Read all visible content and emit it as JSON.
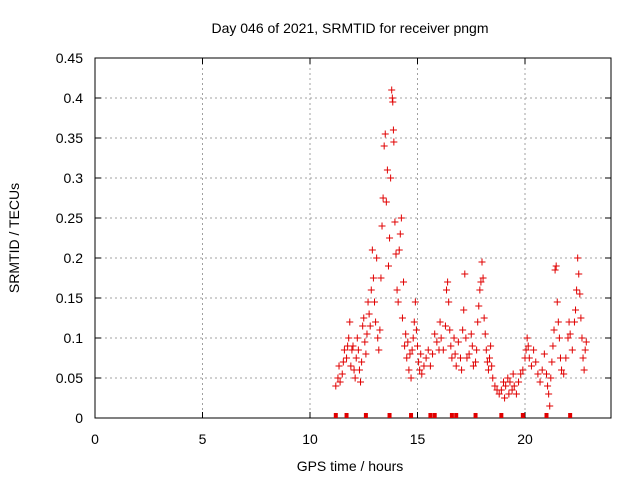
{
  "chart_data": {
    "type": "scatter",
    "title": "Day 046 of 2021, SRMTID for receiver pngm",
    "xlabel": "GPS time / hours",
    "ylabel": "SRMTID / TECUs",
    "xlim": [
      0,
      24
    ],
    "ylim": [
      0,
      0.45
    ],
    "xticks": [
      0,
      5,
      10,
      15,
      20
    ],
    "yticks": [
      0,
      0.05,
      0.1,
      0.15,
      0.2,
      0.25,
      0.3,
      0.35,
      0.4,
      0.45
    ],
    "grid": true,
    "marker": "+",
    "color": "#e00000",
    "series": [
      {
        "name": "SRMTID",
        "points": [
          [
            11.2,
            0.04
          ],
          [
            11.3,
            0.05
          ],
          [
            11.35,
            0.065
          ],
          [
            11.4,
            0.045
          ],
          [
            11.5,
            0.055
          ],
          [
            11.55,
            0.07
          ],
          [
            11.6,
            0.085
          ],
          [
            11.7,
            0.075
          ],
          [
            11.75,
            0.09
          ],
          [
            11.8,
            0.1
          ],
          [
            11.85,
            0.12
          ],
          [
            11.9,
            0.065
          ],
          [
            11.95,
            0.085
          ],
          [
            12.0,
            0.09
          ],
          [
            12.05,
            0.06
          ],
          [
            12.1,
            0.05
          ],
          [
            12.15,
            0.075
          ],
          [
            12.2,
            0.1
          ],
          [
            12.25,
            0.085
          ],
          [
            12.3,
            0.06
          ],
          [
            12.35,
            0.045
          ],
          [
            12.4,
            0.07
          ],
          [
            12.45,
            0.115
          ],
          [
            12.5,
            0.125
          ],
          [
            12.55,
            0.095
          ],
          [
            12.6,
            0.08
          ],
          [
            12.65,
            0.105
          ],
          [
            12.7,
            0.145
          ],
          [
            12.75,
            0.13
          ],
          [
            12.8,
            0.115
          ],
          [
            12.85,
            0.16
          ],
          [
            12.9,
            0.21
          ],
          [
            12.95,
            0.175
          ],
          [
            13.0,
            0.145
          ],
          [
            13.05,
            0.12
          ],
          [
            13.1,
            0.2
          ],
          [
            13.15,
            0.1
          ],
          [
            13.2,
            0.085
          ],
          [
            13.25,
            0.11
          ],
          [
            13.3,
            0.175
          ],
          [
            13.35,
            0.24
          ],
          [
            13.4,
            0.275
          ],
          [
            13.45,
            0.34
          ],
          [
            13.5,
            0.355
          ],
          [
            13.55,
            0.27
          ],
          [
            13.6,
            0.31
          ],
          [
            13.65,
            0.19
          ],
          [
            13.7,
            0.225
          ],
          [
            13.75,
            0.3
          ],
          [
            13.8,
            0.41
          ],
          [
            13.83,
            0.4
          ],
          [
            13.85,
            0.395
          ],
          [
            13.88,
            0.36
          ],
          [
            13.9,
            0.345
          ],
          [
            13.95,
            0.245
          ],
          [
            14.0,
            0.205
          ],
          [
            14.05,
            0.16
          ],
          [
            14.1,
            0.145
          ],
          [
            14.15,
            0.21
          ],
          [
            14.2,
            0.23
          ],
          [
            14.25,
            0.25
          ],
          [
            14.3,
            0.125
          ],
          [
            14.35,
            0.17
          ],
          [
            14.4,
            0.09
          ],
          [
            14.45,
            0.105
          ],
          [
            14.5,
            0.075
          ],
          [
            14.55,
            0.095
          ],
          [
            14.6,
            0.06
          ],
          [
            14.65,
            0.08
          ],
          [
            14.7,
            0.05
          ],
          [
            14.75,
            0.085
          ],
          [
            14.8,
            0.1
          ],
          [
            14.85,
            0.12
          ],
          [
            14.9,
            0.145
          ],
          [
            14.95,
            0.11
          ],
          [
            15.0,
            0.09
          ],
          [
            15.05,
            0.07
          ],
          [
            15.1,
            0.06
          ],
          [
            15.15,
            0.08
          ],
          [
            15.2,
            0.055
          ],
          [
            15.3,
            0.065
          ],
          [
            15.4,
            0.075
          ],
          [
            15.5,
            0.085
          ],
          [
            15.6,
            0.065
          ],
          [
            15.7,
            0.08
          ],
          [
            15.8,
            0.105
          ],
          [
            15.9,
            0.095
          ],
          [
            16.0,
            0.085
          ],
          [
            16.05,
            0.12
          ],
          [
            16.1,
            0.1
          ],
          [
            16.2,
            0.085
          ],
          [
            16.3,
            0.115
          ],
          [
            16.35,
            0.16
          ],
          [
            16.4,
            0.17
          ],
          [
            16.45,
            0.145
          ],
          [
            16.5,
            0.11
          ],
          [
            16.55,
            0.09
          ],
          [
            16.6,
            0.075
          ],
          [
            16.7,
            0.1
          ],
          [
            16.75,
            0.08
          ],
          [
            16.8,
            0.065
          ],
          [
            16.9,
            0.095
          ],
          [
            17.0,
            0.075
          ],
          [
            17.05,
            0.06
          ],
          [
            17.1,
            0.11
          ],
          [
            17.15,
            0.135
          ],
          [
            17.2,
            0.18
          ],
          [
            17.25,
            0.1
          ],
          [
            17.3,
            0.075
          ],
          [
            17.4,
            0.08
          ],
          [
            17.5,
            0.105
          ],
          [
            17.55,
            0.09
          ],
          [
            17.6,
            0.065
          ],
          [
            17.7,
            0.07
          ],
          [
            17.75,
            0.085
          ],
          [
            17.8,
            0.12
          ],
          [
            17.85,
            0.14
          ],
          [
            17.9,
            0.16
          ],
          [
            17.95,
            0.17
          ],
          [
            18.0,
            0.195
          ],
          [
            18.05,
            0.175
          ],
          [
            18.1,
            0.125
          ],
          [
            18.15,
            0.105
          ],
          [
            18.2,
            0.085
          ],
          [
            18.25,
            0.07
          ],
          [
            18.3,
            0.06
          ],
          [
            18.35,
            0.075
          ],
          [
            18.4,
            0.09
          ],
          [
            18.45,
            0.065
          ],
          [
            18.5,
            0.05
          ],
          [
            18.6,
            0.04
          ],
          [
            18.7,
            0.035
          ],
          [
            18.8,
            0.03
          ],
          [
            18.9,
            0.035
          ],
          [
            19.0,
            0.045
          ],
          [
            19.05,
            0.025
          ],
          [
            19.1,
            0.04
          ],
          [
            19.2,
            0.05
          ],
          [
            19.25,
            0.03
          ],
          [
            19.3,
            0.045
          ],
          [
            19.4,
            0.035
          ],
          [
            19.45,
            0.055
          ],
          [
            19.5,
            0.04
          ],
          [
            19.6,
            0.03
          ],
          [
            19.7,
            0.045
          ],
          [
            19.8,
            0.055
          ],
          [
            19.9,
            0.06
          ],
          [
            20.0,
            0.075
          ],
          [
            20.05,
            0.085
          ],
          [
            20.1,
            0.1
          ],
          [
            20.15,
            0.09
          ],
          [
            20.2,
            0.075
          ],
          [
            20.3,
            0.065
          ],
          [
            20.4,
            0.085
          ],
          [
            20.5,
            0.07
          ],
          [
            20.6,
            0.055
          ],
          [
            20.7,
            0.045
          ],
          [
            20.8,
            0.06
          ],
          [
            20.9,
            0.08
          ],
          [
            21.0,
            0.055
          ],
          [
            21.05,
            0.04
          ],
          [
            21.1,
            0.03
          ],
          [
            21.15,
            0.015
          ],
          [
            21.2,
            0.05
          ],
          [
            21.25,
            0.07
          ],
          [
            21.3,
            0.09
          ],
          [
            21.35,
            0.11
          ],
          [
            21.4,
            0.185
          ],
          [
            21.45,
            0.19
          ],
          [
            21.5,
            0.145
          ],
          [
            21.55,
            0.12
          ],
          [
            21.6,
            0.1
          ],
          [
            21.65,
            0.075
          ],
          [
            21.7,
            0.06
          ],
          [
            21.8,
            0.055
          ],
          [
            21.9,
            0.075
          ],
          [
            22.0,
            0.1
          ],
          [
            22.05,
            0.12
          ],
          [
            22.1,
            0.105
          ],
          [
            22.2,
            0.085
          ],
          [
            22.3,
            0.12
          ],
          [
            22.35,
            0.135
          ],
          [
            22.4,
            0.16
          ],
          [
            22.45,
            0.2
          ],
          [
            22.5,
            0.18
          ],
          [
            22.55,
            0.155
          ],
          [
            22.6,
            0.125
          ],
          [
            22.65,
            0.1
          ],
          [
            22.7,
            0.075
          ],
          [
            22.75,
            0.06
          ],
          [
            22.8,
            0.085
          ],
          [
            22.85,
            0.095
          ]
        ]
      }
    ],
    "baseline_marks": {
      "name": "gap markers",
      "y": 0,
      "x": [
        11.2,
        11.7,
        12.6,
        13.7,
        14.7,
        15.6,
        15.8,
        16.6,
        16.8,
        17.7,
        18.9,
        19.9,
        21.0,
        22.1
      ]
    }
  }
}
